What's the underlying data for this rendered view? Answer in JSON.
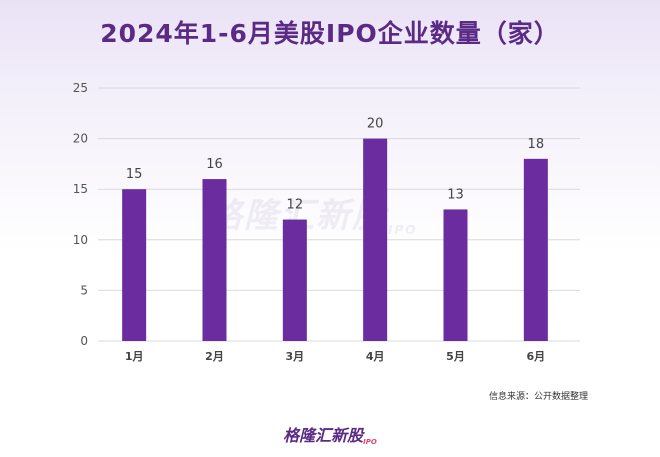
{
  "title": "2024年1-6月美股IPO企业数量（家）",
  "source": "信息来源：公开数据整理",
  "watermark": {
    "text": "格隆汇新股",
    "sub": "IPO"
  },
  "footer_logo": {
    "text": "格隆汇新股",
    "sub": "IPO"
  },
  "colors": {
    "bar": "#6a2c9e",
    "title": "#5b2a86",
    "grid": "#d9d9d9",
    "accent": "#e0457b"
  },
  "chart_data": {
    "type": "bar",
    "categories": [
      "1月",
      "2月",
      "3月",
      "4月",
      "5月",
      "6月"
    ],
    "values": [
      15,
      16,
      12,
      20,
      13,
      18
    ],
    "ylim": [
      0,
      25
    ],
    "yticks": [
      0,
      5,
      10,
      15,
      20,
      25
    ],
    "grid": true
  }
}
